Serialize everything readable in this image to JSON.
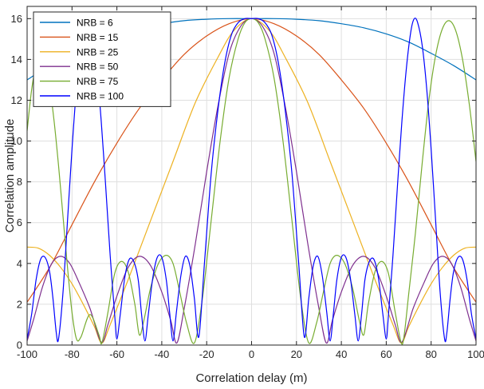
{
  "chart_data": {
    "type": "line",
    "title": "",
    "xlabel": "Correlation delay (m)",
    "ylabel": "Correlation amplitude",
    "xlim": [
      -100,
      100
    ],
    "ylim": [
      0,
      16.6
    ],
    "xticks": [
      -100,
      -80,
      -60,
      -40,
      -20,
      0,
      20,
      40,
      60,
      80,
      100
    ],
    "yticks": [
      0,
      2,
      4,
      6,
      8,
      10,
      12,
      14,
      16
    ],
    "grid": true,
    "legend_position": "top-left",
    "series": [
      {
        "name": "NRB = 6",
        "color": "#0072BD",
        "points": [
          [
            -100,
            13.0
          ],
          [
            -90,
            13.7
          ],
          [
            -80,
            14.3
          ],
          [
            -70,
            14.85
          ],
          [
            -60,
            15.25
          ],
          [
            -50,
            15.55
          ],
          [
            -40,
            15.75
          ],
          [
            -30,
            15.9
          ],
          [
            -20,
            15.97
          ],
          [
            -10,
            16.0
          ],
          [
            0,
            16.0
          ],
          [
            10,
            16.0
          ],
          [
            20,
            15.97
          ],
          [
            30,
            15.9
          ],
          [
            40,
            15.75
          ],
          [
            50,
            15.55
          ],
          [
            60,
            15.25
          ],
          [
            70,
            14.85
          ],
          [
            80,
            14.3
          ],
          [
            90,
            13.7
          ],
          [
            100,
            13.0
          ]
        ]
      },
      {
        "name": "NRB = 15",
        "color": "#D95319",
        "points": [
          [
            -100,
            2.1
          ],
          [
            -90,
            3.8
          ],
          [
            -80,
            5.9
          ],
          [
            -70,
            8.0
          ],
          [
            -60,
            9.9
          ],
          [
            -50,
            11.6
          ],
          [
            -40,
            13.0
          ],
          [
            -30,
            14.25
          ],
          [
            -20,
            15.15
          ],
          [
            -10,
            15.75
          ],
          [
            0,
            16.0
          ],
          [
            10,
            15.75
          ],
          [
            20,
            15.15
          ],
          [
            30,
            14.25
          ],
          [
            40,
            13.0
          ],
          [
            50,
            11.6
          ],
          [
            60,
            9.9
          ],
          [
            70,
            8.0
          ],
          [
            80,
            5.9
          ],
          [
            90,
            3.8
          ],
          [
            100,
            2.1
          ]
        ]
      },
      {
        "name": "NRB = 25",
        "color": "#EDB120",
        "points": [
          [
            -100,
            4.8
          ],
          [
            -95,
            4.75
          ],
          [
            -90,
            4.4
          ],
          [
            -85,
            3.8
          ],
          [
            -80,
            3.0
          ],
          [
            -75,
            2.0
          ],
          [
            -70,
            0.9
          ],
          [
            -66.7,
            0.1
          ],
          [
            -63,
            1.0
          ],
          [
            -55,
            3.2
          ],
          [
            -45,
            6.1
          ],
          [
            -35,
            9.0
          ],
          [
            -25,
            11.9
          ],
          [
            -15,
            14.1
          ],
          [
            -8,
            15.4
          ],
          [
            0,
            16.0
          ],
          [
            8,
            15.4
          ],
          [
            15,
            14.1
          ],
          [
            25,
            11.9
          ],
          [
            35,
            9.0
          ],
          [
            45,
            6.1
          ],
          [
            55,
            3.2
          ],
          [
            63,
            1.0
          ],
          [
            66.7,
            0.1
          ],
          [
            70,
            0.9
          ],
          [
            75,
            2.0
          ],
          [
            80,
            3.0
          ],
          [
            85,
            3.8
          ],
          [
            90,
            4.4
          ],
          [
            95,
            4.75
          ],
          [
            100,
            4.8
          ]
        ]
      },
      {
        "name": "NRB = 50",
        "color": "#7E2F8E",
        "points": [
          [
            -100,
            0.2
          ],
          [
            -97,
            1.3
          ],
          [
            -93,
            2.9
          ],
          [
            -89,
            4.0
          ],
          [
            -85,
            4.35
          ],
          [
            -81,
            4.0
          ],
          [
            -77,
            3.1
          ],
          [
            -72,
            1.8
          ],
          [
            -67,
            0.15
          ],
          [
            -64,
            1.0
          ],
          [
            -60,
            2.4
          ],
          [
            -55,
            3.8
          ],
          [
            -50,
            4.35
          ],
          [
            -45,
            3.9
          ],
          [
            -40,
            2.6
          ],
          [
            -36,
            1.2
          ],
          [
            -33.3,
            0.1
          ],
          [
            -30,
            1.8
          ],
          [
            -25,
            5.0
          ],
          [
            -20,
            8.5
          ],
          [
            -15,
            11.7
          ],
          [
            -10,
            14.3
          ],
          [
            -5,
            15.6
          ],
          [
            0,
            16.0
          ],
          [
            5,
            15.6
          ],
          [
            10,
            14.3
          ],
          [
            15,
            11.7
          ],
          [
            20,
            8.5
          ],
          [
            25,
            5.0
          ],
          [
            30,
            1.8
          ],
          [
            33.3,
            0.1
          ],
          [
            36,
            1.2
          ],
          [
            40,
            2.6
          ],
          [
            45,
            3.9
          ],
          [
            50,
            4.35
          ],
          [
            55,
            3.8
          ],
          [
            60,
            2.4
          ],
          [
            64,
            1.0
          ],
          [
            67,
            0.15
          ],
          [
            72,
            1.8
          ],
          [
            77,
            3.1
          ],
          [
            81,
            4.0
          ],
          [
            85,
            4.35
          ],
          [
            89,
            4.0
          ],
          [
            93,
            2.9
          ],
          [
            97,
            1.3
          ],
          [
            100,
            0.2
          ]
        ]
      },
      {
        "name": "NRB = 75",
        "color": "#77AC30",
        "points": [
          [
            -100,
            10.5
          ],
          [
            -98,
            12.5
          ],
          [
            -96,
            13.7
          ],
          [
            -94,
            14.1
          ],
          [
            -92,
            13.8
          ],
          [
            -90,
            12.7
          ],
          [
            -88,
            11.0
          ],
          [
            -86,
            8.8
          ],
          [
            -84,
            6.3
          ],
          [
            -82,
            3.8
          ],
          [
            -80,
            1.6
          ],
          [
            -78,
            0.3
          ],
          [
            -76,
            0.4
          ],
          [
            -72,
            1.5
          ],
          [
            -68,
            0.5
          ],
          [
            -66.7,
            0.1
          ],
          [
            -64,
            1.6
          ],
          [
            -61,
            3.5
          ],
          [
            -58,
            4.1
          ],
          [
            -55,
            3.6
          ],
          [
            -52,
            2.0
          ],
          [
            -50,
            0.5
          ],
          [
            -48,
            1.2
          ],
          [
            -45,
            2.8
          ],
          [
            -41.5,
            4.0
          ],
          [
            -38,
            4.4
          ],
          [
            -35,
            4.0
          ],
          [
            -32,
            2.6
          ],
          [
            -29,
            1.1
          ],
          [
            -25.5,
            0.1
          ],
          [
            -22,
            2.2
          ],
          [
            -18,
            6.1
          ],
          [
            -14,
            10.0
          ],
          [
            -10,
            13.1
          ],
          [
            -6,
            15.0
          ],
          [
            -3,
            15.8
          ],
          [
            0,
            16.0
          ],
          [
            3,
            15.8
          ],
          [
            6,
            15.0
          ],
          [
            10,
            13.1
          ],
          [
            14,
            10.0
          ],
          [
            18,
            6.1
          ],
          [
            22,
            2.2
          ],
          [
            25.5,
            0.1
          ],
          [
            29,
            1.1
          ],
          [
            32,
            2.6
          ],
          [
            35,
            4.0
          ],
          [
            38,
            4.4
          ],
          [
            41.5,
            4.0
          ],
          [
            45,
            2.8
          ],
          [
            48,
            1.2
          ],
          [
            50,
            0.5
          ],
          [
            52,
            2.0
          ],
          [
            55,
            3.6
          ],
          [
            58,
            4.1
          ],
          [
            61,
            3.5
          ],
          [
            64,
            1.6
          ],
          [
            66.7,
            0.1
          ],
          [
            68,
            0.5
          ],
          [
            70,
            2.5
          ],
          [
            73,
            5.5
          ],
          [
            76,
            8.9
          ],
          [
            79,
            12.0
          ],
          [
            82,
            14.2
          ],
          [
            85,
            15.5
          ],
          [
            88,
            15.9
          ],
          [
            91,
            15.4
          ],
          [
            94,
            14.0
          ],
          [
            97,
            11.8
          ],
          [
            100,
            9.0
          ]
        ]
      },
      {
        "name": "NRB = 100",
        "color": "#0000FF",
        "points": [
          [
            -100,
            0.3
          ],
          [
            -98,
            1.5
          ],
          [
            -96,
            3.2
          ],
          [
            -94,
            4.2
          ],
          [
            -92,
            4.3
          ],
          [
            -90,
            3.6
          ],
          [
            -88.5,
            2.3
          ],
          [
            -87,
            0.6
          ],
          [
            -86,
            0.3
          ],
          [
            -84,
            2.6
          ],
          [
            -82,
            6.1
          ],
          [
            -80,
            9.6
          ],
          [
            -78,
            12.6
          ],
          [
            -76,
            14.7
          ],
          [
            -74,
            15.8
          ],
          [
            -72.5,
            16.0
          ],
          [
            -71,
            15.4
          ],
          [
            -69,
            13.6
          ],
          [
            -67,
            11.0
          ],
          [
            -65,
            7.8
          ],
          [
            -63,
            4.4
          ],
          [
            -61,
            1.5
          ],
          [
            -60,
            0.3
          ],
          [
            -58.5,
            1.5
          ],
          [
            -56.5,
            3.3
          ],
          [
            -54.5,
            4.2
          ],
          [
            -52.5,
            4.1
          ],
          [
            -50.5,
            3.2
          ],
          [
            -49,
            1.5
          ],
          [
            -47.5,
            0.2
          ],
          [
            -46,
            1.5
          ],
          [
            -44,
            3.3
          ],
          [
            -42,
            4.3
          ],
          [
            -40,
            4.3
          ],
          [
            -38,
            3.2
          ],
          [
            -36.5,
            1.6
          ],
          [
            -35,
            0.2
          ],
          [
            -33.5,
            1.6
          ],
          [
            -31.5,
            3.4
          ],
          [
            -29.5,
            4.35
          ],
          [
            -27.5,
            3.9
          ],
          [
            -25.5,
            2.3
          ],
          [
            -23.5,
            0.4
          ],
          [
            -21,
            4.0
          ],
          [
            -18,
            8.4
          ],
          [
            -15,
            11.5
          ],
          [
            -12,
            13.8
          ],
          [
            -9,
            15.2
          ],
          [
            -6,
            15.8
          ],
          [
            -3,
            16.0
          ],
          [
            0,
            16.0
          ],
          [
            3,
            16.0
          ],
          [
            6,
            15.8
          ],
          [
            9,
            15.2
          ],
          [
            12,
            13.8
          ],
          [
            15,
            11.5
          ],
          [
            18,
            8.4
          ],
          [
            21,
            4.0
          ],
          [
            23.5,
            0.4
          ],
          [
            25.5,
            2.3
          ],
          [
            27.5,
            3.9
          ],
          [
            29.5,
            4.35
          ],
          [
            31.5,
            3.4
          ],
          [
            33.5,
            1.6
          ],
          [
            35,
            0.2
          ],
          [
            36.5,
            1.6
          ],
          [
            38,
            3.2
          ],
          [
            40,
            4.3
          ],
          [
            42,
            4.3
          ],
          [
            44,
            3.3
          ],
          [
            46,
            1.5
          ],
          [
            47.5,
            0.2
          ],
          [
            49,
            1.5
          ],
          [
            50.5,
            3.2
          ],
          [
            52.5,
            4.1
          ],
          [
            54.5,
            4.2
          ],
          [
            56.5,
            3.3
          ],
          [
            58.5,
            1.5
          ],
          [
            60,
            0.3
          ],
          [
            61,
            1.5
          ],
          [
            63,
            4.4
          ],
          [
            65,
            7.8
          ],
          [
            67,
            11.0
          ],
          [
            69,
            13.6
          ],
          [
            71,
            15.4
          ],
          [
            72.5,
            16.0
          ],
          [
            74,
            15.8
          ],
          [
            76,
            14.7
          ],
          [
            78,
            12.6
          ],
          [
            80,
            9.6
          ],
          [
            82,
            6.1
          ],
          [
            84,
            2.6
          ],
          [
            86,
            0.3
          ],
          [
            87,
            0.6
          ],
          [
            88.5,
            2.3
          ],
          [
            90,
            3.6
          ],
          [
            92,
            4.3
          ],
          [
            94,
            4.2
          ],
          [
            96,
            3.2
          ],
          [
            98,
            1.5
          ],
          [
            100,
            0.3
          ]
        ]
      }
    ]
  }
}
